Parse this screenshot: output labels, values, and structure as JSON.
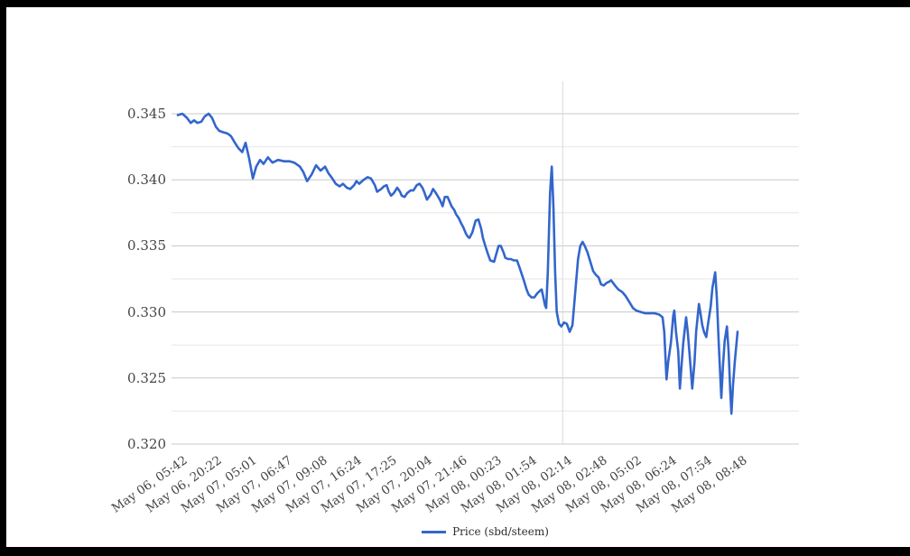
{
  "frame": {
    "border_color": "#000000",
    "background": "#ffffff"
  },
  "legend": {
    "position": "bottom-center"
  },
  "chart_data": {
    "type": "line",
    "title": "",
    "xlabel": "",
    "ylabel": "",
    "grid": true,
    "legend_position": "bottom",
    "line_width": 2.6,
    "colors": {
      "line": "#3366cc",
      "major_grid": "#c8c8c8",
      "minor_grid": "#e6e6e6",
      "vertical_grid": "#d9d9d9",
      "axis_text": "#454545"
    },
    "ylim": [
      0.32,
      0.3475
    ],
    "y_ticks": [
      0.32,
      0.325,
      0.33,
      0.335,
      0.34,
      0.345
    ],
    "y_tick_labels": [
      "0.320",
      "0.325",
      "0.330",
      "0.335",
      "0.340",
      "0.345"
    ],
    "y_minor_step": 0.0025,
    "x_tick_labels": [
      "May 06, 05:42",
      "May 06, 20:22",
      "May 07, 05:01",
      "May 07, 06:47",
      "May 07, 09:08",
      "May 07, 16:24",
      "May 07, 17:25",
      "May 07, 20:04",
      "May 07, 21:46",
      "May 08, 00:23",
      "May 08, 01:54",
      "May 08, 02:14",
      "May 08, 02:48",
      "May 08, 05:02",
      "May 08, 06:24",
      "May 08, 07:54",
      "May 08, 08:48"
    ],
    "vertical_gridline_at_tick_index": 11,
    "series": [
      {
        "name": "Price (sbd/steem)",
        "color": "#3366cc",
        "points": [
          [
            0.0,
            0.3449
          ],
          [
            0.008,
            0.345
          ],
          [
            0.016,
            0.3447
          ],
          [
            0.023,
            0.3443
          ],
          [
            0.029,
            0.3445
          ],
          [
            0.035,
            0.3443
          ],
          [
            0.042,
            0.3444
          ],
          [
            0.048,
            0.3448
          ],
          [
            0.055,
            0.345
          ],
          [
            0.061,
            0.3447
          ],
          [
            0.068,
            0.344
          ],
          [
            0.074,
            0.3437
          ],
          [
            0.081,
            0.3436
          ],
          [
            0.089,
            0.3435
          ],
          [
            0.095,
            0.3433
          ],
          [
            0.102,
            0.3428
          ],
          [
            0.108,
            0.3424
          ],
          [
            0.115,
            0.3421
          ],
          [
            0.121,
            0.3428
          ],
          [
            0.127,
            0.3417
          ],
          [
            0.134,
            0.3401
          ],
          [
            0.14,
            0.341
          ],
          [
            0.147,
            0.3415
          ],
          [
            0.153,
            0.3412
          ],
          [
            0.161,
            0.3417
          ],
          [
            0.169,
            0.3413
          ],
          [
            0.179,
            0.3415
          ],
          [
            0.19,
            0.3414
          ],
          [
            0.2,
            0.3414
          ],
          [
            0.208,
            0.3413
          ],
          [
            0.218,
            0.341
          ],
          [
            0.224,
            0.3406
          ],
          [
            0.231,
            0.3399
          ],
          [
            0.239,
            0.3404
          ],
          [
            0.247,
            0.3411
          ],
          [
            0.255,
            0.3407
          ],
          [
            0.263,
            0.341
          ],
          [
            0.269,
            0.3405
          ],
          [
            0.276,
            0.3401
          ],
          [
            0.282,
            0.3397
          ],
          [
            0.289,
            0.3395
          ],
          [
            0.295,
            0.3397
          ],
          [
            0.302,
            0.3394
          ],
          [
            0.308,
            0.3393
          ],
          [
            0.315,
            0.3396
          ],
          [
            0.319,
            0.3399
          ],
          [
            0.324,
            0.3397
          ],
          [
            0.332,
            0.34
          ],
          [
            0.339,
            0.3402
          ],
          [
            0.345,
            0.3401
          ],
          [
            0.352,
            0.3396
          ],
          [
            0.356,
            0.3391
          ],
          [
            0.363,
            0.3393
          ],
          [
            0.368,
            0.3395
          ],
          [
            0.373,
            0.3396
          ],
          [
            0.377,
            0.3391
          ],
          [
            0.381,
            0.3388
          ],
          [
            0.386,
            0.339
          ],
          [
            0.392,
            0.3394
          ],
          [
            0.397,
            0.3391
          ],
          [
            0.4,
            0.3388
          ],
          [
            0.405,
            0.3387
          ],
          [
            0.41,
            0.339
          ],
          [
            0.416,
            0.3392
          ],
          [
            0.421,
            0.3392
          ],
          [
            0.427,
            0.3396
          ],
          [
            0.432,
            0.3397
          ],
          [
            0.437,
            0.3394
          ],
          [
            0.44,
            0.3391
          ],
          [
            0.445,
            0.3385
          ],
          [
            0.452,
            0.3389
          ],
          [
            0.456,
            0.3393
          ],
          [
            0.461,
            0.339
          ],
          [
            0.468,
            0.3385
          ],
          [
            0.473,
            0.338
          ],
          [
            0.477,
            0.3387
          ],
          [
            0.482,
            0.3387
          ],
          [
            0.489,
            0.338
          ],
          [
            0.494,
            0.3377
          ],
          [
            0.497,
            0.3374
          ],
          [
            0.502,
            0.3371
          ],
          [
            0.505,
            0.3368
          ],
          [
            0.51,
            0.3364
          ],
          [
            0.515,
            0.3359
          ],
          [
            0.518,
            0.3357
          ],
          [
            0.521,
            0.3356
          ],
          [
            0.526,
            0.336
          ],
          [
            0.532,
            0.3369
          ],
          [
            0.537,
            0.337
          ],
          [
            0.542,
            0.3363
          ],
          [
            0.545,
            0.3356
          ],
          [
            0.55,
            0.3349
          ],
          [
            0.553,
            0.3345
          ],
          [
            0.558,
            0.3339
          ],
          [
            0.565,
            0.3338
          ],
          [
            0.569,
            0.3344
          ],
          [
            0.573,
            0.335
          ],
          [
            0.577,
            0.335
          ],
          [
            0.582,
            0.3345
          ],
          [
            0.585,
            0.3341
          ],
          [
            0.59,
            0.334
          ],
          [
            0.595,
            0.334
          ],
          [
            0.6,
            0.3339
          ],
          [
            0.606,
            0.3339
          ],
          [
            0.611,
            0.3333
          ],
          [
            0.618,
            0.3324
          ],
          [
            0.623,
            0.3317
          ],
          [
            0.627,
            0.3313
          ],
          [
            0.632,
            0.3311
          ],
          [
            0.637,
            0.3311
          ],
          [
            0.642,
            0.3314
          ],
          [
            0.647,
            0.3316
          ],
          [
            0.65,
            0.3317
          ],
          [
            0.653,
            0.3311
          ],
          [
            0.656,
            0.3305
          ],
          [
            0.658,
            0.3303
          ],
          [
            0.661,
            0.333
          ],
          [
            0.665,
            0.339
          ],
          [
            0.668,
            0.341
          ],
          [
            0.671,
            0.338
          ],
          [
            0.674,
            0.333
          ],
          [
            0.677,
            0.33
          ],
          [
            0.681,
            0.3291
          ],
          [
            0.685,
            0.3289
          ],
          [
            0.69,
            0.3292
          ],
          [
            0.695,
            0.3291
          ],
          [
            0.7,
            0.3285
          ],
          [
            0.705,
            0.329
          ],
          [
            0.71,
            0.3315
          ],
          [
            0.715,
            0.334
          ],
          [
            0.719,
            0.335
          ],
          [
            0.723,
            0.3353
          ],
          [
            0.727,
            0.335
          ],
          [
            0.732,
            0.3345
          ],
          [
            0.737,
            0.3338
          ],
          [
            0.742,
            0.3331
          ],
          [
            0.747,
            0.3328
          ],
          [
            0.752,
            0.3326
          ],
          [
            0.756,
            0.3321
          ],
          [
            0.761,
            0.332
          ],
          [
            0.766,
            0.3322
          ],
          [
            0.771,
            0.3323
          ],
          [
            0.774,
            0.3324
          ],
          [
            0.781,
            0.332
          ],
          [
            0.787,
            0.3317
          ],
          [
            0.794,
            0.3315
          ],
          [
            0.8,
            0.3312
          ],
          [
            0.806,
            0.3308
          ],
          [
            0.813,
            0.3303
          ],
          [
            0.819,
            0.3301
          ],
          [
            0.827,
            0.33
          ],
          [
            0.835,
            0.3299
          ],
          [
            0.844,
            0.3299
          ],
          [
            0.852,
            0.3299
          ],
          [
            0.86,
            0.3298
          ],
          [
            0.866,
            0.3296
          ],
          [
            0.869,
            0.3285
          ],
          [
            0.873,
            0.3249
          ],
          [
            0.876,
            0.3262
          ],
          [
            0.881,
            0.3277
          ],
          [
            0.885,
            0.3297
          ],
          [
            0.887,
            0.3301
          ],
          [
            0.89,
            0.3285
          ],
          [
            0.894,
            0.327
          ],
          [
            0.897,
            0.3242
          ],
          [
            0.9,
            0.326
          ],
          [
            0.903,
            0.3277
          ],
          [
            0.908,
            0.3296
          ],
          [
            0.911,
            0.3285
          ],
          [
            0.915,
            0.3264
          ],
          [
            0.919,
            0.3242
          ],
          [
            0.923,
            0.3262
          ],
          [
            0.926,
            0.3285
          ],
          [
            0.931,
            0.3306
          ],
          [
            0.934,
            0.3298
          ],
          [
            0.937,
            0.329
          ],
          [
            0.94,
            0.3285
          ],
          [
            0.944,
            0.3281
          ],
          [
            0.947,
            0.329
          ],
          [
            0.952,
            0.3304
          ],
          [
            0.955,
            0.3318
          ],
          [
            0.96,
            0.333
          ],
          [
            0.963,
            0.331
          ],
          [
            0.966,
            0.328
          ],
          [
            0.971,
            0.3235
          ],
          [
            0.974,
            0.326
          ],
          [
            0.977,
            0.3278
          ],
          [
            0.981,
            0.3289
          ],
          [
            0.984,
            0.327
          ],
          [
            0.987,
            0.324
          ],
          [
            0.989,
            0.3223
          ],
          [
            0.992,
            0.3245
          ],
          [
            0.995,
            0.3262
          ],
          [
            1.0,
            0.3285
          ]
        ]
      }
    ]
  }
}
